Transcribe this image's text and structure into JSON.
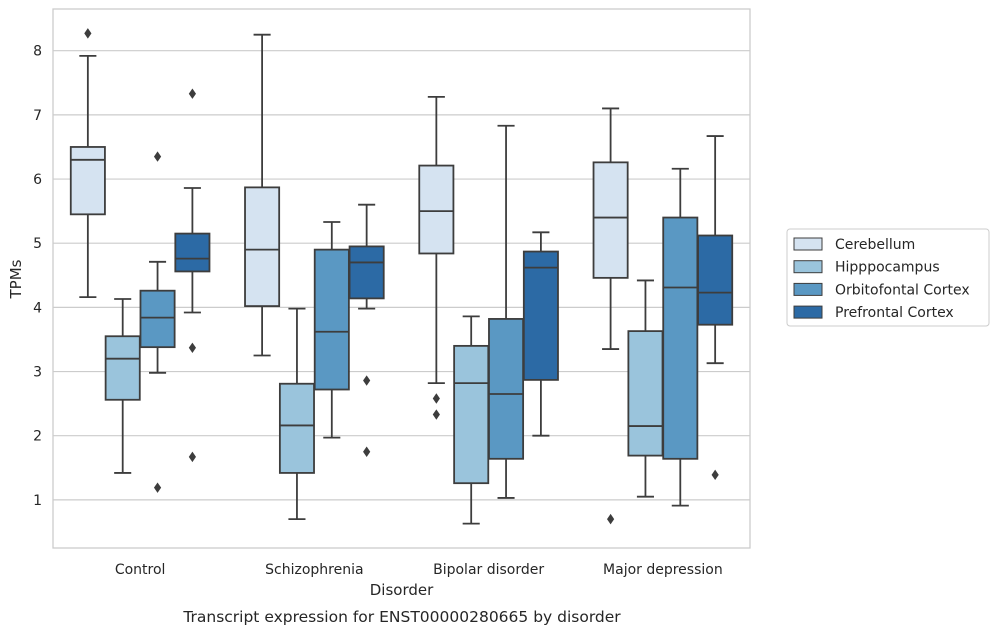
{
  "chart_data": {
    "type": "box",
    "caption": "Transcript expression for ENST00000280665 by disorder",
    "xlabel": "Disorder",
    "ylabel": "TPMs",
    "ylim": [
      0.25,
      8.65
    ],
    "yticks": [
      1,
      2,
      3,
      4,
      5,
      6,
      7,
      8
    ],
    "grid": "horizontal",
    "legend_position": "right",
    "categories": [
      "Control",
      "Schizophrenia",
      "Bipolar disorder",
      "Major depression"
    ],
    "series": [
      {
        "name": "Cerebellum",
        "color": "#d5e3f1",
        "boxes": [
          {
            "whislo": 4.16,
            "q1": 5.45,
            "med": 6.3,
            "q3": 6.5,
            "whishi": 7.92,
            "fliers": [
              8.27
            ]
          },
          {
            "whislo": 3.25,
            "q1": 4.02,
            "med": 4.9,
            "q3": 5.87,
            "whishi": 8.25,
            "fliers": []
          },
          {
            "whislo": 2.82,
            "q1": 4.84,
            "med": 5.5,
            "q3": 6.21,
            "whishi": 7.28,
            "fliers": [
              2.58,
              2.33
            ]
          },
          {
            "whislo": 3.35,
            "q1": 4.46,
            "med": 5.4,
            "q3": 6.26,
            "whishi": 7.1,
            "fliers": [
              0.7
            ]
          }
        ]
      },
      {
        "name": "Hipppocampus",
        "color": "#9ac4dc",
        "boxes": [
          {
            "whislo": 1.42,
            "q1": 2.56,
            "med": 3.2,
            "q3": 3.55,
            "whishi": 4.13,
            "fliers": []
          },
          {
            "whislo": 0.7,
            "q1": 1.42,
            "med": 2.16,
            "q3": 2.81,
            "whishi": 3.98,
            "fliers": []
          },
          {
            "whislo": 0.63,
            "q1": 1.26,
            "med": 2.82,
            "q3": 3.4,
            "whishi": 3.86,
            "fliers": []
          },
          {
            "whislo": 1.05,
            "q1": 1.69,
            "med": 2.15,
            "q3": 3.63,
            "whishi": 4.42,
            "fliers": []
          }
        ]
      },
      {
        "name": "Orbitofontal Cortex",
        "color": "#5a98c3",
        "boxes": [
          {
            "whislo": 2.98,
            "q1": 3.38,
            "med": 3.84,
            "q3": 4.26,
            "whishi": 4.71,
            "fliers": [
              6.35,
              1.19
            ]
          },
          {
            "whislo": 1.97,
            "q1": 2.72,
            "med": 3.62,
            "q3": 4.9,
            "whishi": 5.33,
            "fliers": []
          },
          {
            "whislo": 1.03,
            "q1": 1.64,
            "med": 2.65,
            "q3": 3.82,
            "whishi": 6.83,
            "fliers": []
          },
          {
            "whislo": 0.91,
            "q1": 1.64,
            "med": 4.31,
            "q3": 5.4,
            "whishi": 6.16,
            "fliers": []
          }
        ]
      },
      {
        "name": "Prefrontal Cortex",
        "color": "#2c6aa5",
        "boxes": [
          {
            "whislo": 3.92,
            "q1": 4.56,
            "med": 4.76,
            "q3": 5.15,
            "whishi": 5.86,
            "fliers": [
              7.33,
              3.37,
              1.67
            ]
          },
          {
            "whislo": 3.98,
            "q1": 4.14,
            "med": 4.7,
            "q3": 4.95,
            "whishi": 5.6,
            "fliers": [
              2.86,
              1.75
            ]
          },
          {
            "whislo": 2.0,
            "q1": 2.87,
            "med": 4.62,
            "q3": 4.87,
            "whishi": 5.17,
            "fliers": []
          },
          {
            "whislo": 3.13,
            "q1": 3.73,
            "med": 4.23,
            "q3": 5.12,
            "whishi": 6.67,
            "fliers": [
              1.39
            ]
          }
        ]
      }
    ]
  }
}
